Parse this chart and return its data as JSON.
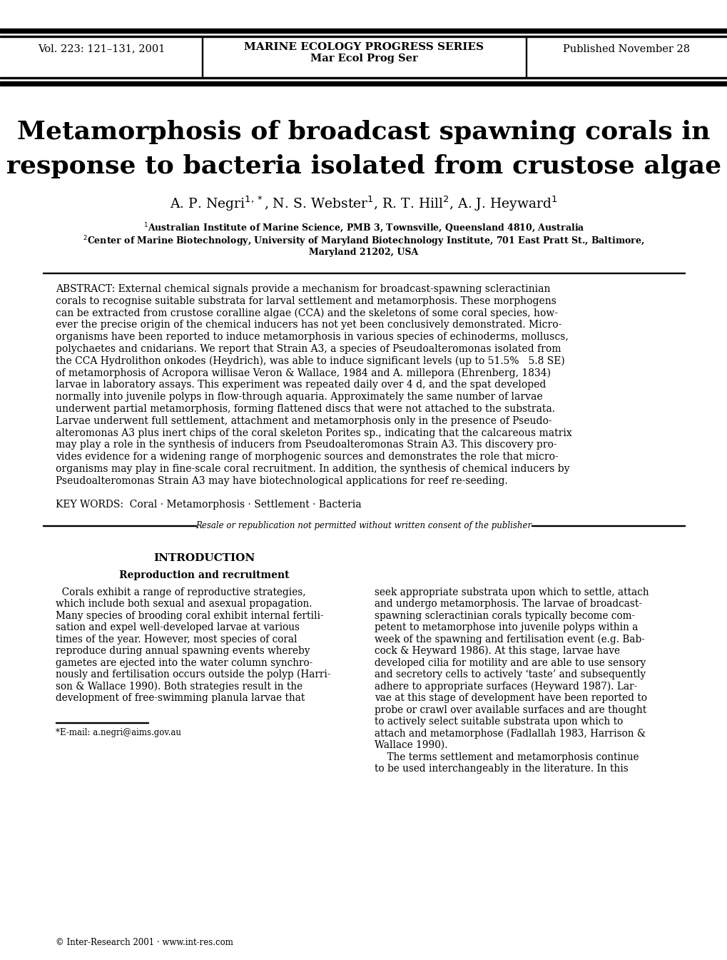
{
  "header_left": "Vol. 223: 121–131, 2001",
  "header_center_line1": "MARINE ECOLOGY PROGRESS SERIES",
  "header_center_line2": "Mar Ecol Prog Ser",
  "header_right": "Published November 28",
  "title_line1": "Metamorphosis of broadcast spawning corals in",
  "title_line2": "response to bacteria isolated from crustose algae",
  "author_str": "A. P. Negri$^{1,*}$, N. S. Webster$^{1}$, R. T. Hill$^{2}$, A. J. Heyward$^{1}$",
  "affil1": "$^{1}$Australian Institute of Marine Science, PMB 3, Townsville, Queensland 4810, Australia",
  "affil2": "$^{2}$Center of Marine Biotechnology, University of Maryland Biotechnology Institute, 701 East Pratt St., Baltimore,",
  "affil2b": "Maryland 21202, USA",
  "abstract_lines": [
    "ABSTRACT: External chemical signals provide a mechanism for broadcast-spawning scleractinian",
    "corals to recognise suitable substrata for larval settlement and metamorphosis. These morphogens",
    "can be extracted from crustose coralline algae (CCA) and the skeletons of some coral species, how-",
    "ever the precise origin of the chemical inducers has not yet been conclusively demonstrated. Micro-",
    "organisms have been reported to induce metamorphosis in various species of echinoderms, molluscs,",
    "polychaetes and cnidarians. We report that Strain A3, a species of Pseudoalteromonas isolated from",
    "the CCA Hydrolithon onkodes (Heydrich), was able to induce significant levels (up to 51.5%   5.8 SE)",
    "of metamorphosis of Acropora willisae Veron & Wallace, 1984 and A. millepora (Ehrenberg, 1834)",
    "larvae in laboratory assays. This experiment was repeated daily over 4 d, and the spat developed",
    "normally into juvenile polyps in flow-through aquaria. Approximately the same number of larvae",
    "underwent partial metamorphosis, forming flattened discs that were not attached to the substrata.",
    "Larvae underwent full settlement, attachment and metamorphosis only in the presence of Pseudo-",
    "alteromonas A3 plus inert chips of the coral skeleton Porites sp., indicating that the calcareous matrix",
    "may play a role in the synthesis of inducers from Pseudoalteromonas Strain A3. This discovery pro-",
    "vides evidence for a widening range of morphogenic sources and demonstrates the role that micro-",
    "organisms may play in fine-scale coral recruitment. In addition, the synthesis of chemical inducers by",
    "Pseudoalteromonas Strain A3 may have biotechnological applications for reef re-seeding."
  ],
  "keywords": "KEY WORDS:  Coral · Metamorphosis · Settlement · Bacteria",
  "resale_note": "Resale or republication not permitted without written consent of the publisher",
  "section_intro_title": "INTRODUCTION",
  "section_intro_sub": "Reproduction and recruitment",
  "left_col_lines": [
    "  Corals exhibit a range of reproductive strategies,",
    "which include both sexual and asexual propagation.",
    "Many species of brooding coral exhibit internal fertili-",
    "sation and expel well-developed larvae at various",
    "times of the year. However, most species of coral",
    "reproduce during annual spawning events whereby",
    "gametes are ejected into the water column synchro-",
    "nously and fertilisation occurs outside the polyp (Harri-",
    "son & Wallace 1990). Both strategies result in the",
    "development of free-swimming planula larvae that"
  ],
  "right_col_lines": [
    "seek appropriate substrata upon which to settle, attach",
    "and undergo metamorphosis. The larvae of broadcast-",
    "spawning scleractinian corals typically become com-",
    "petent to metamorphose into juvenile polyps within a",
    "week of the spawning and fertilisation event (e.g. Bab-",
    "cock & Heyward 1986). At this stage, larvae have",
    "developed cilia for motility and are able to use sensory",
    "and secretory cells to actively ‘taste’ and subsequently",
    "adhere to appropriate surfaces (Heyward 1987). Lar-",
    "vae at this stage of development have been reported to",
    "probe or crawl over available surfaces and are thought",
    "to actively select suitable substrata upon which to",
    "attach and metamorphose (Fadlallah 1983, Harrison &",
    "Wallace 1990).",
    "    The terms settlement and metamorphosis continue",
    "to be used interchangeably in the literature. In this"
  ],
  "footnote": "*E-mail: a.negri@aims.gov.au",
  "copyright": "© Inter-Research 2001 · www.int-res.com",
  "bg_color": "#ffffff",
  "text_color": "#000000"
}
